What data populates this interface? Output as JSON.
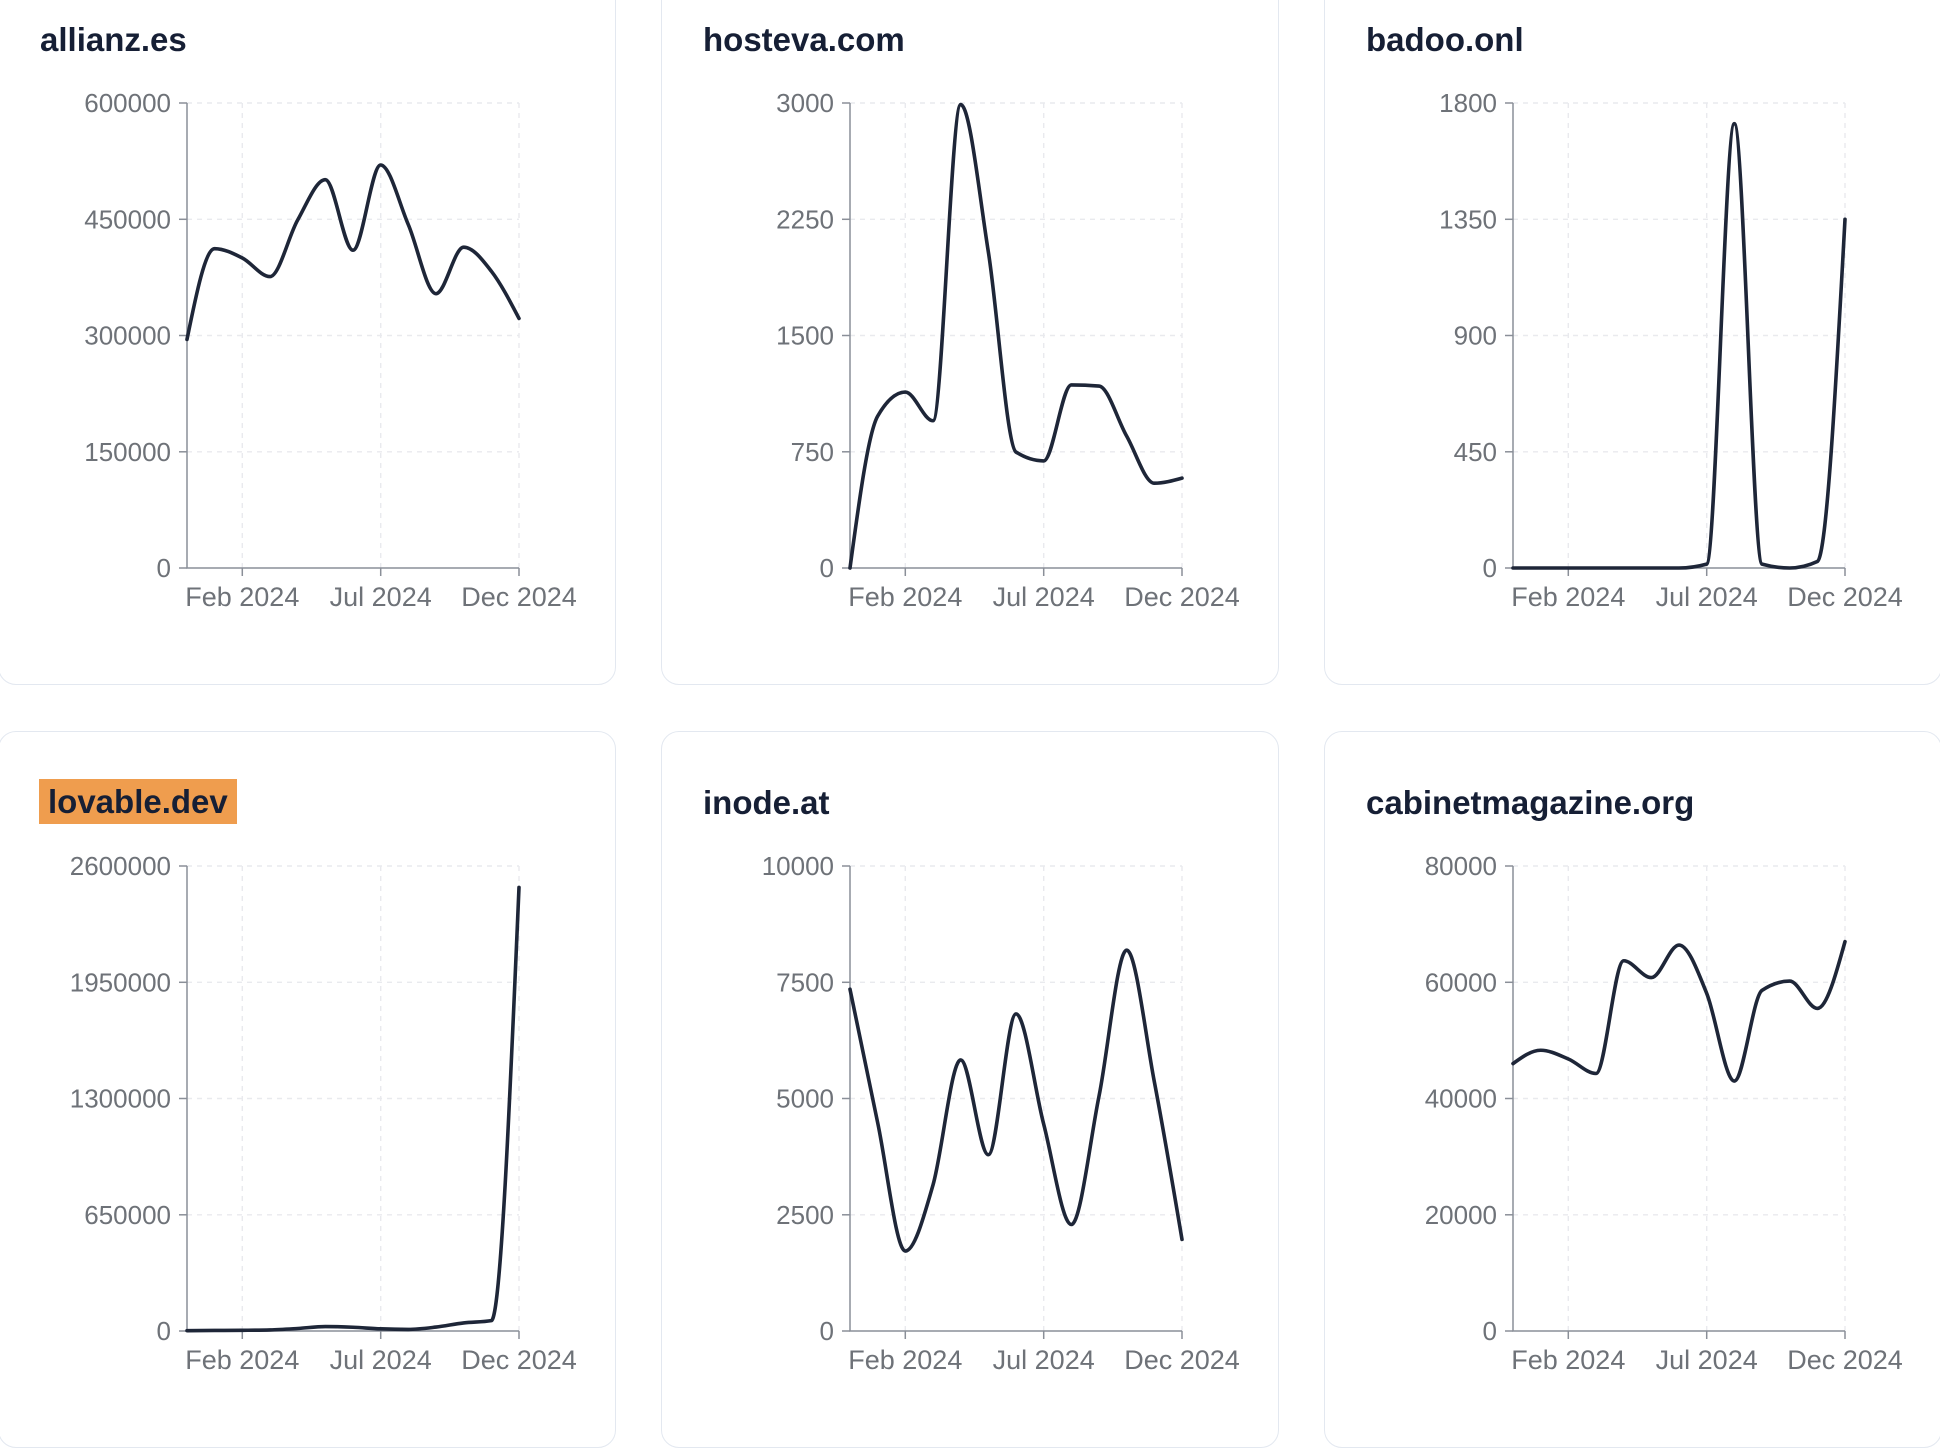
{
  "colors": {
    "line": "#1e2638",
    "title": "#161f35",
    "tick_text": "#6e7278",
    "axis": "#8a8f98",
    "grid": "#e9eaee",
    "card_border": "#e3e8f0",
    "card_bg": "#ffffff",
    "page_bg": "#ffffff",
    "highlight": "#ef9d4e"
  },
  "chart_data": [
    {
      "type": "line",
      "title": "allianz.es",
      "title_highlighted": false,
      "values": [
        295000,
        412000,
        400000,
        376000,
        449000,
        501000,
        410000,
        520000,
        443000,
        354000,
        414000,
        383000,
        322000
      ],
      "ylim": [
        0,
        600000
      ],
      "yticks": [
        0,
        150000,
        300000,
        450000,
        600000
      ],
      "xticks": [
        {
          "label": "Feb 2024",
          "pos": 0.16667
        },
        {
          "label": "Jul 2024",
          "pos": 0.58333
        },
        {
          "label": "Dec 2024",
          "pos": 1.0
        }
      ],
      "grid": true
    },
    {
      "type": "line",
      "title": "hosteva.com",
      "title_highlighted": false,
      "values": [
        0,
        980,
        1135,
        950,
        2990,
        2040,
        748,
        691,
        1181,
        1174,
        851,
        547,
        580
      ],
      "ylim": [
        0,
        3000
      ],
      "yticks": [
        0,
        750,
        1500,
        2250,
        3000
      ],
      "xticks": [
        {
          "label": "Feb 2024",
          "pos": 0.16667
        },
        {
          "label": "Jul 2024",
          "pos": 0.58333
        },
        {
          "label": "Dec 2024",
          "pos": 1.0
        }
      ],
      "grid": true
    },
    {
      "type": "line",
      "title": "badoo.onl",
      "title_highlighted": false,
      "values": [
        0,
        0,
        0,
        0,
        0,
        0,
        0,
        15,
        1720,
        15,
        0,
        25,
        1350
      ],
      "ylim": [
        0,
        1800
      ],
      "yticks": [
        0,
        450,
        900,
        1350,
        1800
      ],
      "xticks": [
        {
          "label": "Feb 2024",
          "pos": 0.16667
        },
        {
          "label": "Jul 2024",
          "pos": 0.58333
        },
        {
          "label": "Dec 2024",
          "pos": 1.0
        }
      ],
      "grid": true
    },
    {
      "type": "line",
      "title": "lovable.dev",
      "title_highlighted": true,
      "values": [
        2000,
        3000,
        4000,
        6000,
        14000,
        25000,
        21000,
        12000,
        9000,
        22000,
        45000,
        58000,
        2480000
      ],
      "ylim": [
        0,
        2600000
      ],
      "yticks": [
        0,
        650000,
        1300000,
        1950000,
        2600000
      ],
      "xticks": [
        {
          "label": "Feb 2024",
          "pos": 0.16667
        },
        {
          "label": "Jul 2024",
          "pos": 0.58333
        },
        {
          "label": "Dec 2024",
          "pos": 1.0
        }
      ],
      "grid": true
    },
    {
      "type": "line",
      "title": "inode.at",
      "title_highlighted": false,
      "values": [
        7350,
        4480,
        1720,
        3140,
        5830,
        3790,
        6820,
        4450,
        2290,
        5050,
        8190,
        5360,
        1970
      ],
      "ylim": [
        0,
        10000
      ],
      "yticks": [
        0,
        2500,
        5000,
        7500,
        10000
      ],
      "xticks": [
        {
          "label": "Feb 2024",
          "pos": 0.16667
        },
        {
          "label": "Jul 2024",
          "pos": 0.58333
        },
        {
          "label": "Dec 2024",
          "pos": 1.0
        }
      ],
      "grid": true
    },
    {
      "type": "line",
      "title": "cabinetmagazine.org",
      "title_highlighted": false,
      "values": [
        46000,
        48300,
        46800,
        44300,
        63700,
        60800,
        66400,
        58100,
        43000,
        58600,
        60200,
        55500,
        67000
      ],
      "ylim": [
        0,
        80000
      ],
      "yticks": [
        0,
        20000,
        40000,
        60000,
        80000
      ],
      "xticks": [
        {
          "label": "Feb 2024",
          "pos": 0.16667
        },
        {
          "label": "Jul 2024",
          "pos": 0.58333
        },
        {
          "label": "Dec 2024",
          "pos": 1.0
        }
      ],
      "grid": true
    }
  ]
}
